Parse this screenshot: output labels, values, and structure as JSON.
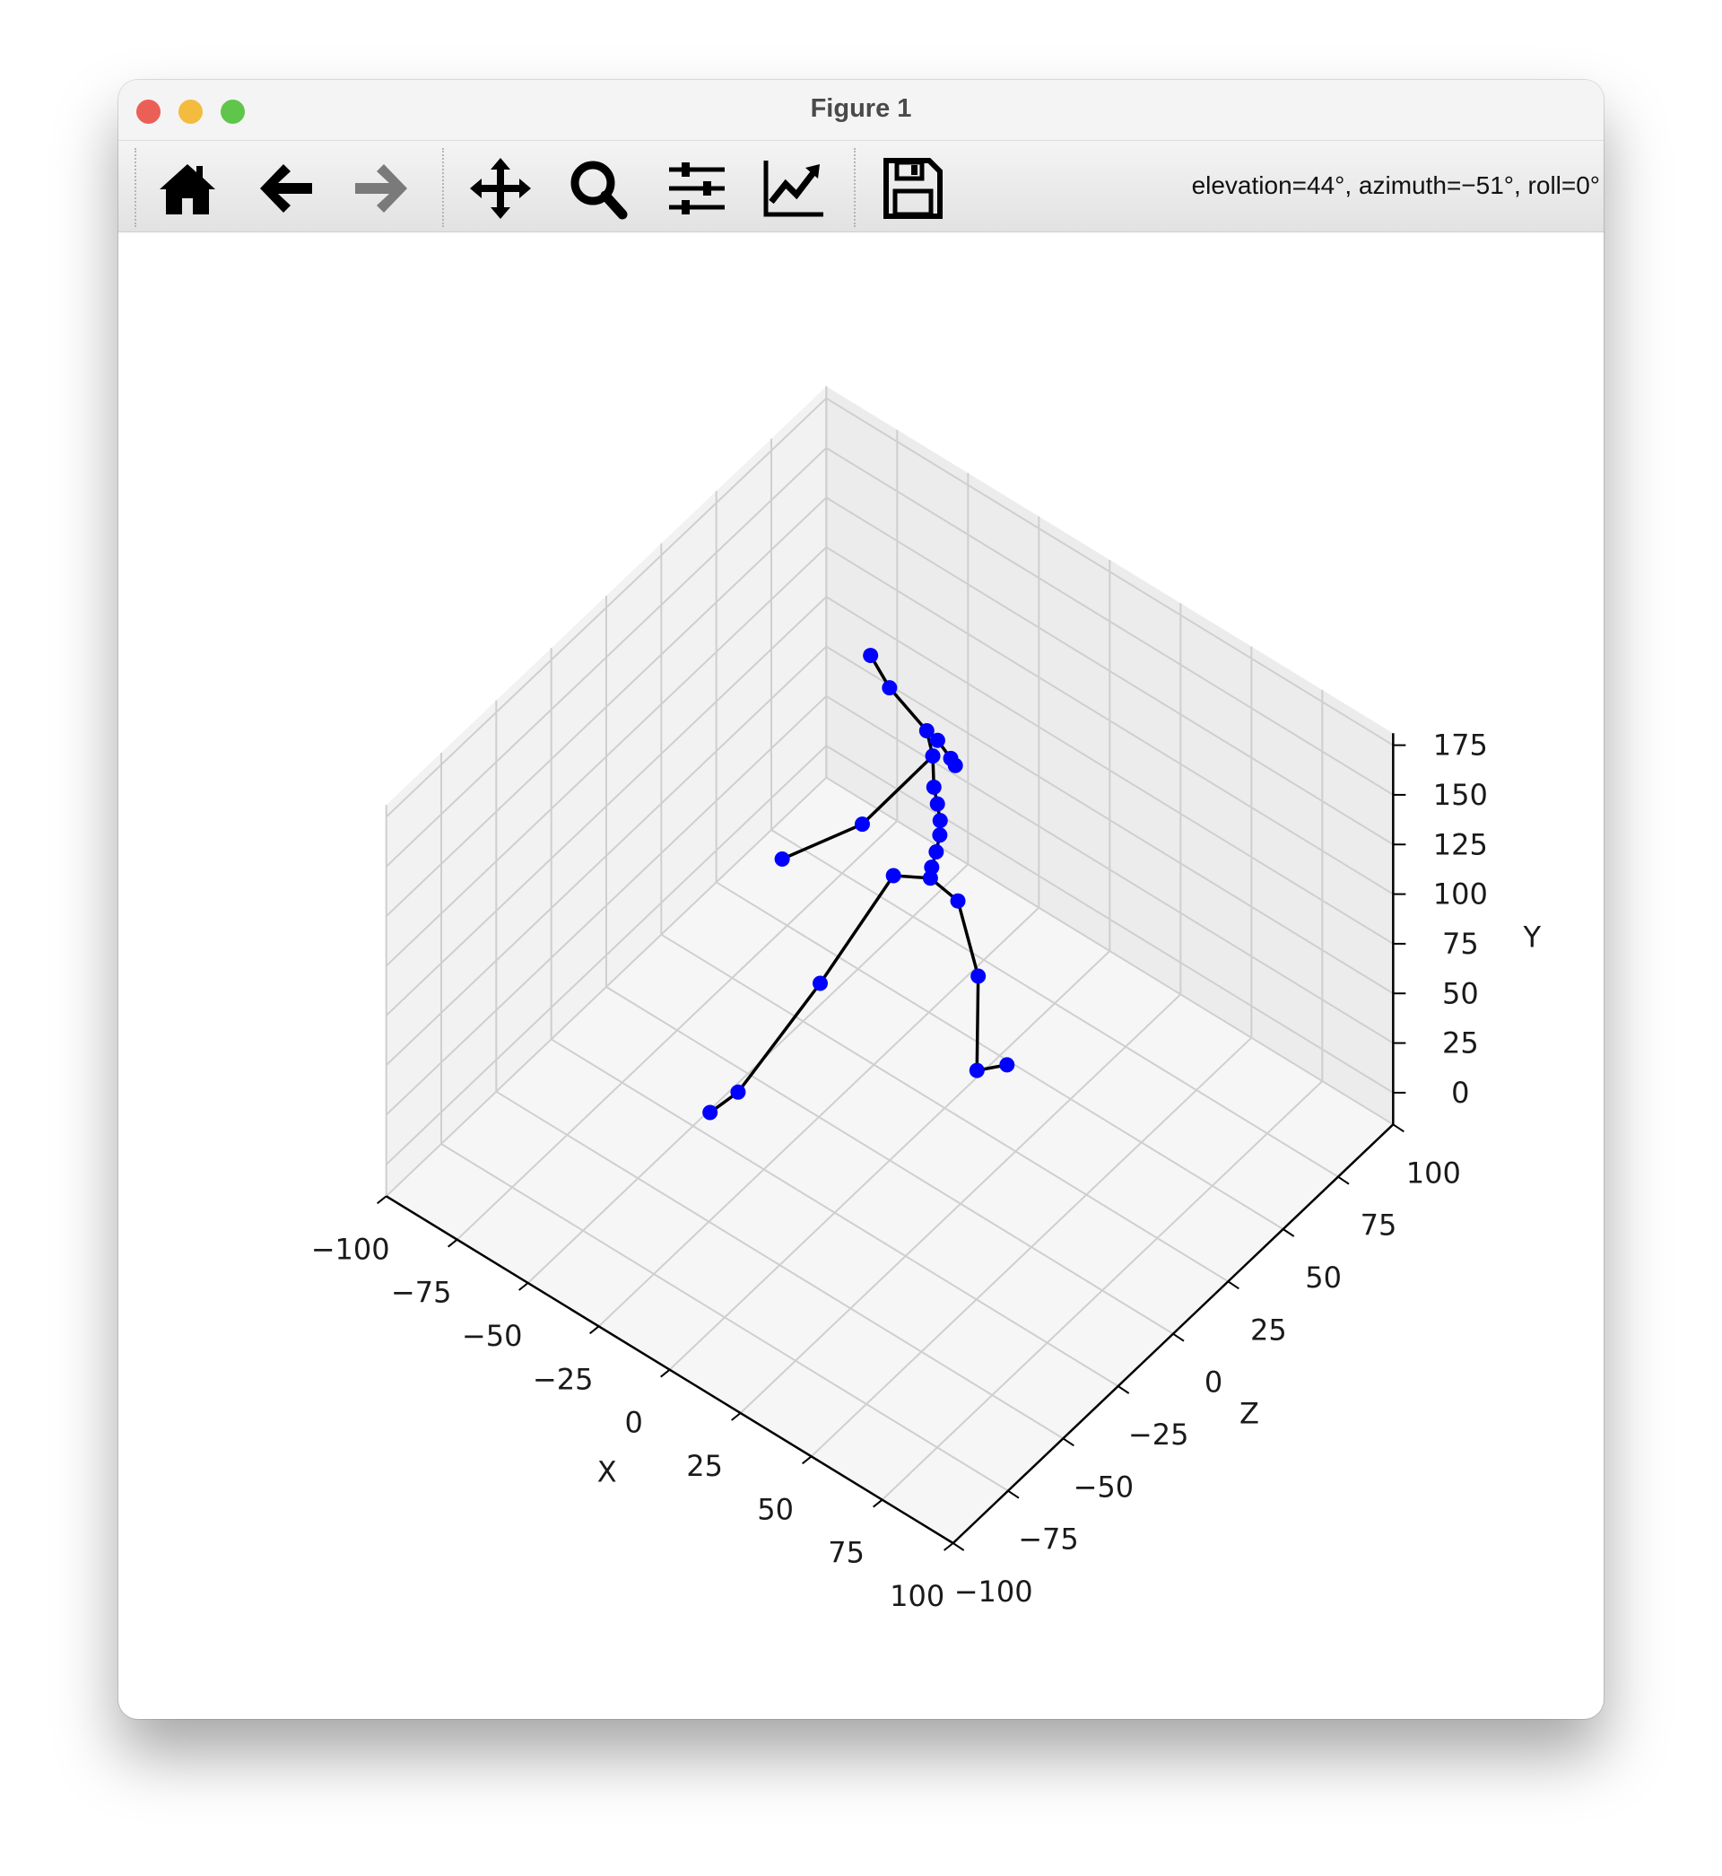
{
  "window": {
    "title": "Figure 1"
  },
  "toolbar": {
    "tools": [
      {
        "name": "home-icon",
        "label": "Home"
      },
      {
        "name": "back-arrow-icon",
        "label": "Back"
      },
      {
        "name": "forward-arrow-icon",
        "label": "Forward"
      },
      {
        "name": "pan-move-icon",
        "label": "Pan"
      },
      {
        "name": "zoom-magnifier-icon",
        "label": "Zoom"
      },
      {
        "name": "subplots-sliders-icon",
        "label": "Configure subplots"
      },
      {
        "name": "axes-edit-chart-icon",
        "label": "Edit axes"
      },
      {
        "name": "save-floppy-icon",
        "label": "Save"
      }
    ],
    "status": "elevation=44°, azimuth=−51°, roll=0°"
  },
  "chart_data": {
    "type": "scatter3d",
    "view": {
      "elevation": 44,
      "azimuth": -51,
      "roll": 0
    },
    "xlabel": "X",
    "ylabel": "Y",
    "zlabel": "Z",
    "xlim": [
      -100,
      100
    ],
    "zlim": [
      -100,
      100
    ],
    "ylim": [
      -16,
      181
    ],
    "xticks": [
      "−100",
      "−75",
      "−50",
      "−25",
      "0",
      "25",
      "50",
      "75",
      "100"
    ],
    "zticks": [
      "−100",
      "−75",
      "−50",
      "−25",
      "0",
      "25",
      "50",
      "75",
      "100"
    ],
    "yticks": [
      "0",
      "25",
      "50",
      "75",
      "100",
      "125",
      "150",
      "175"
    ],
    "grid": true,
    "marker_color": "#0000ff",
    "line_color": "#000000",
    "points": [
      {
        "x": -34.7,
        "y": 170,
        "z": 36.0
      },
      {
        "x": -28.7,
        "y": 158,
        "z": 36.9
      },
      {
        "x": -15.5,
        "y": 148,
        "z": 36.8
      },
      {
        "x": -11.9,
        "y": 146,
        "z": 37.1
      },
      {
        "x": -6.8,
        "y": 142,
        "z": 36.5
      },
      {
        "x": -5.1,
        "y": 140,
        "z": 36.4
      },
      {
        "x": -11.2,
        "y": 142,
        "z": 34.0
      },
      {
        "x": -8.4,
        "y": 132,
        "z": 30.9
      },
      {
        "x": -7.0,
        "y": 125,
        "z": 30.7
      },
      {
        "x": -5.8,
        "y": 118,
        "z": 30.4
      },
      {
        "x": -5.3,
        "y": 112,
        "z": 29.6
      },
      {
        "x": -5.4,
        "y": 105,
        "z": 28.1
      },
      {
        "x": -5.6,
        "y": 99,
        "z": 26.3
      },
      {
        "x": -5.2,
        "y": 95,
        "z": 25.2
      },
      {
        "x": -14.6,
        "y": 93,
        "z": 20.5
      },
      {
        "x": -25.3,
        "y": 50,
        "z": 1.0
      },
      {
        "x": -37.2,
        "y": 8,
        "z": -21.0
      },
      {
        "x": -42.2,
        "y": 0,
        "z": -27.3
      },
      {
        "x": 4.5,
        "y": 92,
        "z": 25.2
      },
      {
        "x": 7.0,
        "y": 50,
        "z": 31.2
      },
      {
        "x": 9.2,
        "y": 8,
        "z": 27.8
      },
      {
        "x": 10.8,
        "y": 0,
        "z": 39.4
      },
      {
        "x": -21.7,
        "y": 118,
        "z": 15.5
      },
      {
        "x": -39.1,
        "y": 100,
        "z": 1.5
      }
    ],
    "edges": [
      [
        0,
        1
      ],
      [
        1,
        2
      ],
      [
        2,
        3
      ],
      [
        3,
        4
      ],
      [
        4,
        5
      ],
      [
        2,
        6
      ],
      [
        6,
        7
      ],
      [
        7,
        8
      ],
      [
        8,
        9
      ],
      [
        9,
        10
      ],
      [
        10,
        11
      ],
      [
        11,
        12
      ],
      [
        12,
        13
      ],
      [
        13,
        14
      ],
      [
        14,
        15
      ],
      [
        15,
        16
      ],
      [
        16,
        17
      ],
      [
        13,
        18
      ],
      [
        18,
        19
      ],
      [
        19,
        20
      ],
      [
        20,
        21
      ],
      [
        6,
        22
      ],
      [
        22,
        23
      ]
    ]
  }
}
